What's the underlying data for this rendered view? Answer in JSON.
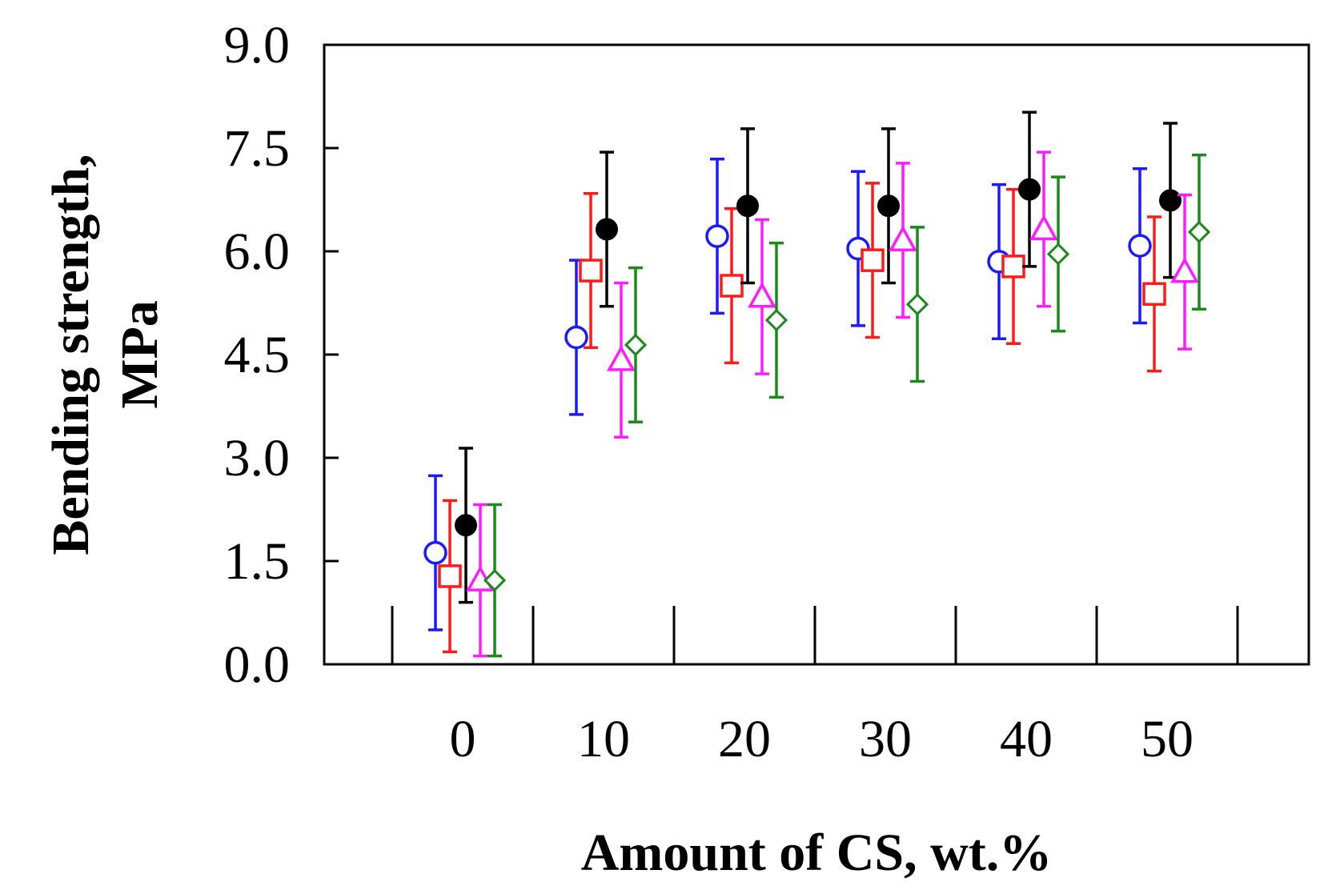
{
  "chart_data": {
    "type": "scatter",
    "title": "",
    "xlabel": "Amount of CS, wt.%",
    "ylabel_lines": [
      "Bending strength,",
      "MPa"
    ],
    "ylim": [
      0.0,
      9.0
    ],
    "yticks": [
      "0.0",
      "1.5",
      "3.0",
      "4.5",
      "6.0",
      "7.5",
      "9.0"
    ],
    "categories": [
      "0",
      "10",
      "20",
      "30",
      "40",
      "50"
    ],
    "grid": false,
    "legend": "none",
    "series": [
      {
        "marker": "open-circle",
        "color": "#1a1aff",
        "values": [
          1.62,
          4.75,
          6.22,
          6.04,
          5.85,
          6.08
        ],
        "errors": [
          1.12,
          1.12,
          1.12,
          1.12,
          1.12,
          1.12
        ]
      },
      {
        "marker": "open-square",
        "color": "#ff1a1a",
        "values": [
          1.28,
          5.72,
          5.5,
          5.87,
          5.78,
          5.38
        ],
        "errors": [
          1.1,
          1.12,
          1.12,
          1.12,
          1.12,
          1.12
        ]
      },
      {
        "marker": "filled-circle",
        "color": "#000000",
        "values": [
          2.02,
          6.32,
          6.66,
          6.66,
          6.9,
          6.74
        ],
        "errors": [
          1.12,
          1.12,
          1.12,
          1.12,
          1.12,
          1.12
        ]
      },
      {
        "marker": "open-triangle",
        "color": "#ff1aff",
        "values": [
          1.22,
          4.42,
          5.34,
          6.16,
          6.32,
          5.7
        ],
        "errors": [
          1.1,
          1.12,
          1.12,
          1.12,
          1.12,
          1.12
        ]
      },
      {
        "marker": "open-diamond",
        "color": "#1a8a1a",
        "values": [
          1.22,
          4.64,
          5.0,
          5.23,
          5.96,
          6.28
        ],
        "errors": [
          1.1,
          1.12,
          1.12,
          1.12,
          1.12,
          1.12
        ]
      }
    ]
  }
}
